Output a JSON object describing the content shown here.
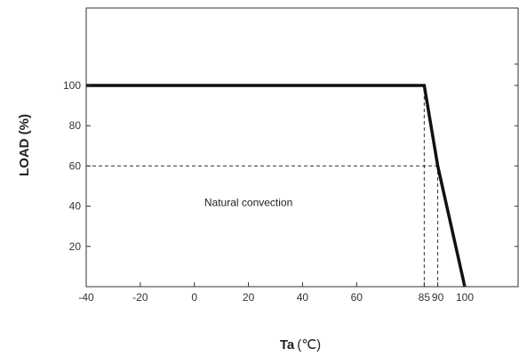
{
  "chart_data": {
    "type": "line",
    "title": "",
    "xlabel": "Ta",
    "xunit": "(℃)",
    "ylabel": "LOAD (%)",
    "xlim": [
      -40,
      100
    ],
    "ylim": [
      0,
      120
    ],
    "x_ticks": [
      -40,
      -20,
      0,
      20,
      40,
      60,
      85,
      90,
      100
    ],
    "y_ticks": [
      20,
      40,
      60,
      80,
      100
    ],
    "series": [
      {
        "x": [
          -40,
          85,
          90,
          100
        ],
        "y": [
          100,
          100,
          60,
          0
        ]
      }
    ],
    "reference_lines": [
      {
        "from": [
          85,
          0
        ],
        "to": [
          85,
          100
        ]
      },
      {
        "from": [
          90,
          0
        ],
        "to": [
          90,
          60
        ]
      },
      {
        "from": [
          -40,
          60
        ],
        "to": [
          90,
          60
        ]
      }
    ],
    "annotations": [
      {
        "text": "Natural convection",
        "x": 20,
        "y": 40
      }
    ],
    "grid": false,
    "legend": "none"
  }
}
